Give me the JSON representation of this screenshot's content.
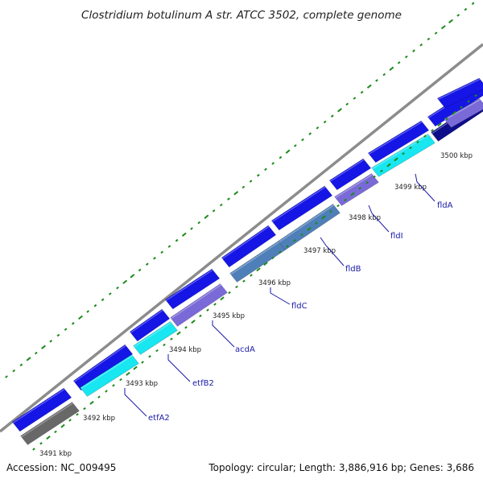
{
  "title": "Clostridium botulinum A str. ATCC 3502, complete genome",
  "footer": {
    "accession": "Accession: NC_009495",
    "summary": "Topology: circular; Length: 3,886,916 bp; Genes: 3,686"
  },
  "colors": {
    "backbone": "#8c8c8c",
    "forward": "#1515e6",
    "reverse_a": "#18e6f0",
    "reverse_b": "#7a6ad8",
    "reverse_c": "#4f7fb8",
    "reverse_d": "#686868",
    "reverse_e": "#0e0e8a",
    "gc_dots": "#1a8a1a",
    "label": "#1a1aa8"
  },
  "ticks": [
    "3491 kbp",
    "3492 kbp",
    "3493 kbp",
    "3494 kbp",
    "3495 kbp",
    "3496 kbp",
    "3497 kbp",
    "3498 kbp",
    "3499 kbp",
    "3500 kbp"
  ],
  "genes": [
    {
      "name": "etfA2"
    },
    {
      "name": "etfB2"
    },
    {
      "name": "acdA"
    },
    {
      "name": "fldC"
    },
    {
      "name": "fldB"
    },
    {
      "name": "fldI"
    },
    {
      "name": "fldA"
    }
  ]
}
